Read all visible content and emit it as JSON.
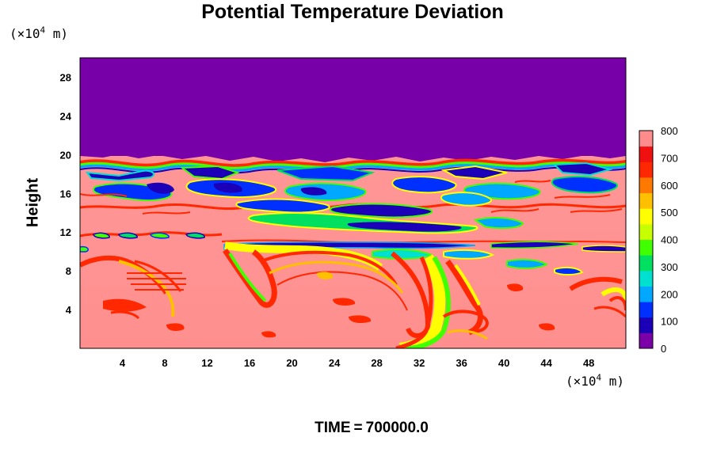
{
  "chart_data": {
    "type": "heatmap",
    "title": "Potential Temperature Deviation",
    "ylabel": "Height",
    "xlabel": "",
    "y_unit": {
      "prefix": "(×10",
      "exp": "4",
      "suffix": " m)"
    },
    "x_unit": {
      "prefix": "(×10",
      "exp": "4",
      "suffix": " m)"
    },
    "xlim": [
      0,
      51.5
    ],
    "ylim": [
      0,
      30
    ],
    "x_ticks": [
      4,
      8,
      12,
      16,
      20,
      24,
      28,
      32,
      36,
      40,
      44,
      48
    ],
    "y_ticks": [
      4,
      8,
      12,
      16,
      20,
      24,
      28
    ],
    "colorbar": {
      "ticks": [
        0,
        100,
        200,
        300,
        400,
        500,
        600,
        700,
        800
      ],
      "range": [
        0,
        800
      ],
      "colors": [
        "#7b00a8",
        "#1c00b8",
        "#0030ff",
        "#00a8ff",
        "#00e0d0",
        "#00e060",
        "#40ff00",
        "#c8ff00",
        "#ffff00",
        "#ffc000",
        "#ff7800",
        "#ff2800",
        "#f01010",
        "#ff8c8c"
      ]
    },
    "regions": [
      {
        "name": "upper-layer",
        "y": [
          20,
          30
        ],
        "value": 0,
        "color": "#7800a8"
      },
      {
        "name": "turbulent-band",
        "y": [
          10,
          20
        ],
        "value": "mixed"
      },
      {
        "name": "lower-layer",
        "y": [
          0,
          10
        ],
        "value": 800,
        "color": "#ff9696"
      }
    ],
    "grid": false,
    "legend": "colorbar-right"
  },
  "footer": {
    "time_label": "TIME",
    "equals": "=",
    "time_value": "700000.0"
  }
}
